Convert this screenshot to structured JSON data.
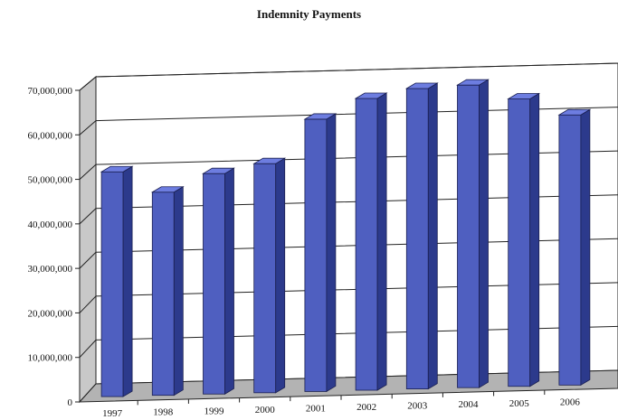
{
  "chart_data": {
    "type": "bar",
    "title": "Indemnity Payments",
    "categories": [
      "1997",
      "1998",
      "1999",
      "2000",
      "2001",
      "2002",
      "2003",
      "2004",
      "2005",
      "2006"
    ],
    "values": [
      52000000,
      47000000,
      51000000,
      53000000,
      63000000,
      67500000,
      69500000,
      70000000,
      66500000,
      62500000
    ],
    "yticks": [
      "0",
      "10,000,000",
      "20,000,000",
      "30,000,000",
      "40,000,000",
      "50,000,000",
      "60,000,000",
      "70,000,000"
    ],
    "ylim": [
      0,
      70000000
    ],
    "xlabel": "",
    "ylabel": "",
    "grid": true,
    "bar_color": "#4f5fc0",
    "bar_top_color": "#6d7de0",
    "bar_side_color": "#2c3a8c",
    "floor_color": "#b3b3b3",
    "wall_color": "#ffffff"
  }
}
